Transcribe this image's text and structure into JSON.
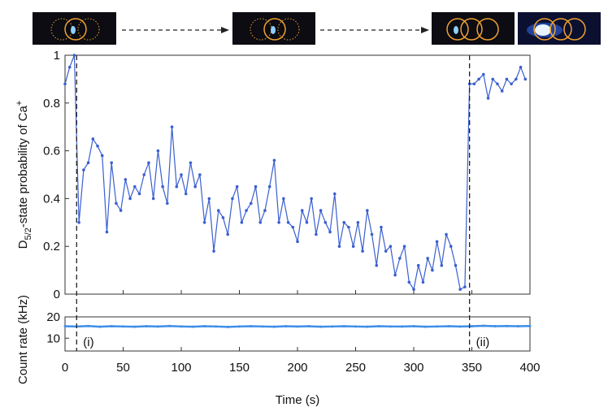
{
  "chart_data": [
    {
      "type": "line",
      "ylabel": [
        "D",
        "5/2",
        "-state probability of Ca",
        "+"
      ],
      "xlim": [
        0,
        400
      ],
      "xticks": [
        0,
        50,
        100,
        150,
        200,
        250,
        300,
        350,
        400
      ],
      "ylim": [
        0,
        1
      ],
      "yticks": [
        0,
        0.2,
        0.4,
        0.6,
        0.8,
        1
      ],
      "vlines": [
        10,
        348
      ],
      "series": [
        {
          "color": "#3a5fd0",
          "x": [
            0,
            4,
            8,
            12,
            16,
            20,
            24,
            28,
            32,
            36,
            40,
            44,
            48,
            52,
            56,
            60,
            64,
            68,
            72,
            76,
            80,
            84,
            88,
            92,
            96,
            100,
            104,
            108,
            112,
            116,
            120,
            124,
            128,
            132,
            136,
            140,
            144,
            148,
            152,
            156,
            160,
            164,
            168,
            172,
            176,
            180,
            184,
            188,
            192,
            196,
            200,
            204,
            208,
            212,
            216,
            220,
            224,
            228,
            232,
            236,
            240,
            244,
            248,
            252,
            256,
            260,
            264,
            268,
            272,
            276,
            280,
            284,
            288,
            292,
            296,
            300,
            304,
            308,
            312,
            316,
            320,
            324,
            328,
            332,
            336,
            340,
            344,
            348,
            352,
            356,
            360,
            364,
            368,
            372,
            376,
            380,
            384,
            388,
            392,
            396
          ],
          "values": [
            0.88,
            0.95,
            1,
            0.3,
            0.52,
            0.55,
            0.65,
            0.62,
            0.58,
            0.26,
            0.55,
            0.38,
            0.35,
            0.48,
            0.4,
            0.45,
            0.42,
            0.5,
            0.55,
            0.4,
            0.6,
            0.45,
            0.38,
            0.7,
            0.45,
            0.5,
            0.42,
            0.55,
            0.45,
            0.5,
            0.3,
            0.4,
            0.18,
            0.35,
            0.32,
            0.25,
            0.4,
            0.45,
            0.3,
            0.35,
            0.38,
            0.45,
            0.3,
            0.35,
            0.45,
            0.56,
            0.3,
            0.4,
            0.3,
            0.28,
            0.22,
            0.35,
            0.3,
            0.4,
            0.25,
            0.35,
            0.3,
            0.26,
            0.42,
            0.2,
            0.3,
            0.28,
            0.2,
            0.3,
            0.18,
            0.35,
            0.25,
            0.12,
            0.28,
            0.18,
            0.2,
            0.08,
            0.15,
            0.2,
            0.05,
            0.02,
            0.12,
            0.05,
            0.15,
            0.1,
            0.22,
            0.12,
            0.25,
            0.2,
            0.12,
            0.02,
            0.03,
            0.88,
            0.88,
            0.9,
            0.92,
            0.82,
            0.9,
            0.88,
            0.85,
            0.9,
            0.88,
            0.9,
            0.95,
            0.9
          ]
        }
      ]
    },
    {
      "type": "line",
      "xlabel": "Time (s)",
      "ylabel": "Count rate (kHz)",
      "xlim": [
        0,
        400
      ],
      "xticks": [
        0,
        50,
        100,
        150,
        200,
        250,
        300,
        350,
        400
      ],
      "ylim": [
        4,
        20
      ],
      "yticks": [
        10,
        20
      ],
      "annotations": [
        {
          "x": 10,
          "text": "(i)"
        },
        {
          "x": 348,
          "text": "(ii)"
        }
      ],
      "series": [
        {
          "color": "#3d8ee8",
          "x": [
            0,
            10,
            20,
            30,
            40,
            50,
            60,
            70,
            80,
            90,
            100,
            110,
            120,
            130,
            140,
            150,
            160,
            170,
            180,
            190,
            200,
            210,
            220,
            230,
            240,
            250,
            260,
            270,
            280,
            290,
            300,
            310,
            320,
            330,
            340,
            350,
            360,
            370,
            380,
            390,
            400
          ],
          "values": [
            15.6,
            15.5,
            15.7,
            15.4,
            15.6,
            15.5,
            15.4,
            15.6,
            15.5,
            15.7,
            15.5,
            15.4,
            15.6,
            15.5,
            15.3,
            15.5,
            15.6,
            15.5,
            15.4,
            15.6,
            15.5,
            15.6,
            15.4,
            15.5,
            15.6,
            15.5,
            15.4,
            15.6,
            15.5,
            15.5,
            15.6,
            15.4,
            15.5,
            15.6,
            15.5,
            15.6,
            15.8,
            15.6,
            15.7,
            15.6,
            15.7
          ]
        }
      ]
    }
  ]
}
